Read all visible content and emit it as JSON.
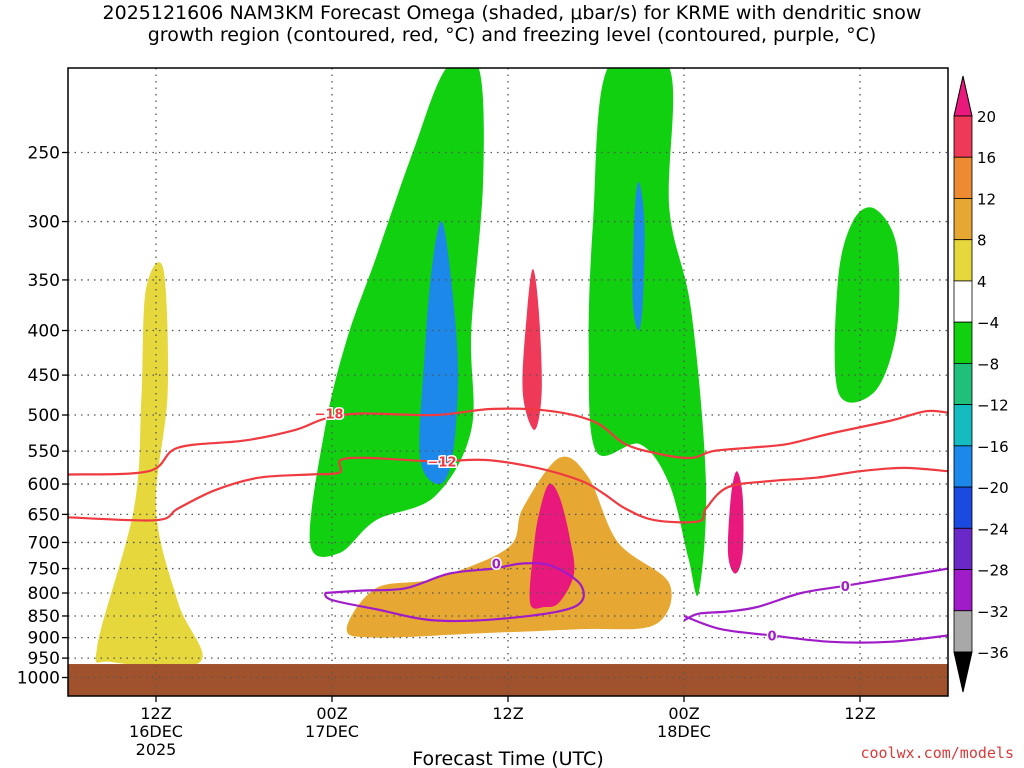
{
  "chart_data": {
    "type": "heatmap",
    "title_line1": "2025121606 NAM3KM Forecast Omega (shaded, μbar/s) for KRME with dendritic snow",
    "title_line2": "growth region (contoured, red, °C) and freezing level (contoured, purple, °C)",
    "xlabel": "Forecast Time (UTC)",
    "ylabel": "",
    "y_axis": {
      "unit": "hPa",
      "scale": "log-pressure",
      "range": [
        1050,
        200
      ],
      "ticks": [
        250,
        300,
        350,
        400,
        450,
        500,
        550,
        600,
        650,
        700,
        750,
        800,
        850,
        900,
        950,
        1000
      ]
    },
    "x_axis": {
      "unit": "forecast hour from 2025-12-16 06Z",
      "range": [
        0,
        60
      ],
      "ticks": [
        {
          "hour": 6,
          "label1": "12Z",
          "label2": "16DEC",
          "label3": "2025"
        },
        {
          "hour": 18,
          "label1": "00Z",
          "label2": "17DEC",
          "label3": ""
        },
        {
          "hour": 30,
          "label1": "12Z",
          "label2": "",
          "label3": ""
        },
        {
          "hour": 42,
          "label1": "00Z",
          "label2": "18DEC",
          "label3": ""
        },
        {
          "hour": 54,
          "label1": "12Z",
          "label2": "",
          "label3": ""
        }
      ]
    },
    "grid": true,
    "legend": "right colorbar",
    "colorbar": {
      "labels": [
        "20",
        "16",
        "12",
        "8",
        "4",
        "−4",
        "−8",
        "−12",
        "−16",
        "−20",
        "−24",
        "−28",
        "−32",
        "−36"
      ],
      "bins": [
        {
          "from": 16,
          "to": 20,
          "color": "#ee3a58"
        },
        {
          "from": 12,
          "to": 16,
          "color": "#ee8a32"
        },
        {
          "from": 8,
          "to": 12,
          "color": "#e6a832"
        },
        {
          "from": 4,
          "to": 8,
          "color": "#e6d83c"
        },
        {
          "from": -4,
          "to": 4,
          "color": "#ffffff"
        },
        {
          "from": -8,
          "to": -4,
          "color": "#10d010"
        },
        {
          "from": -12,
          "to": -8,
          "color": "#20c07a"
        },
        {
          "from": -16,
          "to": -12,
          "color": "#14bcc0"
        },
        {
          "from": -20,
          "to": -16,
          "color": "#1c88ea"
        },
        {
          "from": -24,
          "to": -20,
          "color": "#1a4ae0"
        },
        {
          "from": -28,
          "to": -24,
          "color": "#6a28c8"
        },
        {
          "from": -32,
          "to": -28,
          "color": "#a01cc8"
        },
        {
          "from": -36,
          "to": -32,
          "color": "#a8a8a8"
        }
      ],
      "over_color": "#e8187c",
      "under_color": "#000000"
    },
    "shaded_regions": [
      {
        "name": "strong ascent column near 14Z 17DEC",
        "value_range": "16-20+",
        "color": "#e8187c",
        "points": [
          [
            31.5,
            820
          ],
          [
            31.8,
            700
          ],
          [
            32.2,
            640
          ],
          [
            32.8,
            600
          ],
          [
            33.5,
            620
          ],
          [
            34.2,
            690
          ],
          [
            34.5,
            760
          ],
          [
            33.5,
            820
          ],
          [
            32.5,
            830
          ]
        ]
      },
      {
        "name": "ascent maximum aloft",
        "value_range": "16-20",
        "color": "#ee3a58",
        "points": [
          [
            31.0,
            470
          ],
          [
            31.3,
            380
          ],
          [
            31.7,
            340
          ],
          [
            32.1,
            380
          ],
          [
            32.3,
            470
          ],
          [
            31.8,
            520
          ]
        ]
      },
      {
        "name": "ascent maximum near 03Z 18DEC",
        "value_range": "16-20",
        "color": "#e8187c",
        "points": [
          [
            45.0,
            720
          ],
          [
            45.2,
            620
          ],
          [
            45.6,
            580
          ],
          [
            46.0,
            620
          ],
          [
            46.0,
            720
          ],
          [
            45.5,
            760
          ]
        ]
      },
      {
        "name": "descent core upstream",
        "value_range": "-16 to -20",
        "color": "#1c88ea",
        "points": [
          [
            24.0,
            560
          ],
          [
            24.3,
            430
          ],
          [
            24.8,
            340
          ],
          [
            25.5,
            300
          ],
          [
            26.2,
            360
          ],
          [
            26.6,
            450
          ],
          [
            26.2,
            560
          ],
          [
            25.3,
            600
          ]
        ]
      },
      {
        "name": "descent core downstream",
        "value_range": "-16 to -20",
        "color": "#1c88ea",
        "points": [
          [
            38.5,
            370
          ],
          [
            38.6,
            300
          ],
          [
            38.9,
            270
          ],
          [
            39.3,
            300
          ],
          [
            39.2,
            370
          ],
          [
            38.9,
            400
          ]
        ]
      },
      {
        "name": "moderate ascent low levels",
        "value_range": "8-12",
        "color": "#e6a832",
        "points": [
          [
            19.0,
            880
          ],
          [
            21.0,
            790
          ],
          [
            25.0,
            770
          ],
          [
            30.0,
            710
          ],
          [
            31.0,
            640
          ],
          [
            33.5,
            560
          ],
          [
            35.5,
            590
          ],
          [
            37.5,
            700
          ],
          [
            41.0,
            780
          ],
          [
            40.0,
            870
          ],
          [
            35.0,
            880
          ],
          [
            28.0,
            890
          ],
          [
            21.0,
            900
          ]
        ]
      },
      {
        "name": "strong ascent low levels",
        "value_range": "12-16",
        "color": "#ee8a32",
        "points": [
          [
            20.0,
            860
          ],
          [
            22.0,
            800
          ],
          [
            27.0,
            790
          ],
          [
            31.0,
            750
          ],
          [
            34.0,
            680
          ],
          [
            36.0,
            740
          ],
          [
            39.5,
            800
          ],
          [
            38.5,
            860
          ],
          [
            33.0,
            870
          ],
          [
            26.0,
            880
          ]
        ]
      },
      {
        "name": "ascent band upstream",
        "value_range": "4-8",
        "color": "#e6d83c",
        "points": [
          [
            2.0,
            920
          ],
          [
            4.5,
            640
          ],
          [
            5.0,
            480
          ],
          [
            5.3,
            360
          ],
          [
            6.5,
            340
          ],
          [
            6.8,
            470
          ],
          [
            6.0,
            640
          ],
          [
            7.5,
            820
          ],
          [
            9.0,
            960
          ],
          [
            3.0,
            960
          ]
        ]
      },
      {
        "name": "descent band upstream",
        "value_range": "-4 to -12",
        "color": "#10d010",
        "points": [
          [
            16.5,
            700
          ],
          [
            17.5,
            520
          ],
          [
            19.0,
            410
          ],
          [
            21.0,
            330
          ],
          [
            23.5,
            250
          ],
          [
            25.8,
            200
          ],
          [
            28.0,
            200
          ],
          [
            28.3,
            270
          ],
          [
            27.5,
            400
          ],
          [
            27.5,
            520
          ],
          [
            25.0,
            620
          ],
          [
            21.0,
            660
          ],
          [
            18.5,
            720
          ]
        ]
      },
      {
        "name": "descent band downstream",
        "value_range": "-4 to -12",
        "color": "#10d010",
        "points": [
          [
            36.0,
            550
          ],
          [
            35.5,
            420
          ],
          [
            35.8,
            300
          ],
          [
            36.8,
            200
          ],
          [
            41.0,
            200
          ],
          [
            41.0,
            290
          ],
          [
            42.5,
            380
          ],
          [
            43.5,
            600
          ],
          [
            43.0,
            800
          ],
          [
            42.3,
            730
          ],
          [
            41.0,
            600
          ],
          [
            39.0,
            540
          ]
        ]
      },
      {
        "name": "descent patch far downstream",
        "value_range": "-4 to -12",
        "color": "#10d010",
        "points": [
          [
            52.5,
            470
          ],
          [
            52.5,
            350
          ],
          [
            53.5,
            300
          ],
          [
            55.0,
            290
          ],
          [
            56.5,
            320
          ],
          [
            56.5,
            400
          ],
          [
            55.0,
            470
          ]
        ]
      }
    ],
    "contours": [
      {
        "name": "dendritic snow growth region",
        "label": "−18",
        "color": "#ee3a40",
        "points": [
          [
            0,
            585
          ],
          [
            5.5,
            580
          ],
          [
            7.5,
            545
          ],
          [
            12,
            535
          ],
          [
            15.5,
            520
          ],
          [
            17.5,
            505
          ],
          [
            20,
            498
          ],
          [
            25,
            500
          ],
          [
            29,
            492
          ],
          [
            33,
            495
          ],
          [
            36,
            510
          ],
          [
            38,
            540
          ],
          [
            40.5,
            555
          ],
          [
            42.5,
            560
          ],
          [
            44,
            550
          ],
          [
            46.5,
            545
          ],
          [
            49,
            540
          ],
          [
            52,
            525
          ],
          [
            56,
            508
          ],
          [
            58.5,
            495
          ],
          [
            60,
            497
          ]
        ],
        "label_at": [
          17.8,
          498
        ]
      },
      {
        "name": "dendritic snow growth region",
        "label": "−12",
        "color": "#ee3a40",
        "points": [
          [
            0,
            655
          ],
          [
            6,
            660
          ],
          [
            7.5,
            640
          ],
          [
            10,
            610
          ],
          [
            13,
            590
          ],
          [
            16.5,
            585
          ],
          [
            18.5,
            582
          ],
          [
            18.6,
            563
          ],
          [
            20.5,
            560
          ],
          [
            25,
            565
          ],
          [
            28.5,
            563
          ],
          [
            32,
            575
          ],
          [
            35,
            595
          ],
          [
            36.5,
            615
          ],
          [
            38,
            640
          ],
          [
            40,
            660
          ],
          [
            43,
            662
          ],
          [
            43.5,
            640
          ],
          [
            45,
            605
          ],
          [
            48,
            595
          ],
          [
            51,
            590
          ],
          [
            54,
            580
          ],
          [
            57,
            575
          ],
          [
            60,
            580
          ]
        ],
        "label_at": [
          25.5,
          565
        ]
      },
      {
        "name": "freezing level",
        "label": "0",
        "color": "#a01cc8",
        "points": [
          [
            17.5,
            800
          ],
          [
            20,
            795
          ],
          [
            23,
            790
          ],
          [
            26,
            760
          ],
          [
            29,
            750
          ],
          [
            31,
            740
          ],
          [
            33,
            745
          ],
          [
            35,
            785
          ],
          [
            34.5,
            830
          ],
          [
            30,
            855
          ],
          [
            25,
            860
          ],
          [
            21,
            835
          ],
          [
            18,
            815
          ],
          [
            17.5,
            800
          ]
        ],
        "label_at": [
          29.2,
          740
        ]
      },
      {
        "name": "freezing level",
        "label": "0",
        "color": "#a01cc8",
        "points": [
          [
            42,
            860
          ],
          [
            43,
            845
          ],
          [
            45,
            840
          ],
          [
            47,
            830
          ],
          [
            50,
            800
          ],
          [
            53,
            785
          ],
          [
            56,
            770
          ],
          [
            60,
            750
          ]
        ],
        "label_at": [
          53,
          785
        ]
      },
      {
        "name": "freezing level",
        "label": "0",
        "color": "#a01cc8",
        "points": [
          [
            42,
            850
          ],
          [
            44.5,
            880
          ],
          [
            48,
            895
          ],
          [
            52,
            910
          ],
          [
            56,
            910
          ],
          [
            60,
            895
          ]
        ],
        "label_at": [
          48,
          895
        ]
      }
    ],
    "ground": {
      "color": "#a0522d",
      "surface_pressure": 965
    }
  }
}
